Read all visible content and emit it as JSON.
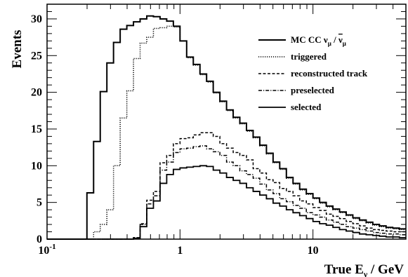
{
  "chart_data": {
    "type": "line",
    "step": true,
    "xscale": "log",
    "xlim": [
      0.1,
      50
    ],
    "ylim": [
      0,
      32
    ],
    "xlabel_main": "True E",
    "xlabel_sub": "ν",
    "xlabel_unit": " / GeV",
    "ylabel": "Events",
    "legend_position": "upper-right",
    "x_tick_labels": [
      {
        "v": 0.1,
        "main": "10",
        "sup": "-1"
      },
      {
        "v": 1,
        "main": "1",
        "sup": ""
      },
      {
        "v": 10,
        "main": "10",
        "sup": ""
      }
    ],
    "y_ticks": [
      0,
      5,
      10,
      15,
      20,
      25,
      30
    ],
    "legend": [
      {
        "series": "mc",
        "text": "MC CC ν",
        "sub": "μ",
        "mid": " / ",
        "bar": "ν",
        "sub2": "μ"
      },
      {
        "series": "triggered",
        "text": "triggered"
      },
      {
        "series": "reco",
        "text": "reconstructed track"
      },
      {
        "series": "presel",
        "text": "preselected"
      },
      {
        "series": "selected",
        "text": "selected"
      }
    ],
    "bin_edges": [
      0.1,
      0.1122,
      0.1259,
      0.1413,
      0.1585,
      0.1778,
      0.1995,
      0.2239,
      0.2512,
      0.2818,
      0.3162,
      0.3548,
      0.3981,
      0.4467,
      0.5012,
      0.5623,
      0.631,
      0.7079,
      0.7943,
      0.8913,
      1.0,
      1.122,
      1.259,
      1.413,
      1.585,
      1.778,
      1.995,
      2.239,
      2.512,
      2.818,
      3.162,
      3.548,
      3.981,
      4.467,
      5.012,
      5.623,
      6.31,
      7.079,
      7.943,
      8.913,
      10.0,
      11.22,
      12.59,
      14.13,
      15.85,
      17.78,
      19.95,
      22.39,
      25.12,
      28.18,
      31.62,
      35.48,
      39.81,
      44.67,
      50.0
    ],
    "series": [
      {
        "id": "mc",
        "style": "solid",
        "width": 2,
        "values": [
          0,
          0,
          0,
          0,
          0,
          0,
          6.3,
          13.3,
          20.1,
          24.0,
          26.8,
          28.6,
          29.1,
          29.6,
          30.0,
          30.4,
          30.3,
          30.0,
          29.7,
          29.0,
          27.0,
          24.8,
          23.8,
          22.5,
          21.5,
          20.0,
          18.8,
          17.6,
          16.6,
          15.8,
          14.8,
          13.9,
          12.8,
          11.7,
          10.5,
          9.6,
          8.4,
          7.6,
          6.8,
          6.2,
          5.6,
          5.0,
          4.5,
          4.1,
          3.7,
          3.3,
          2.9,
          2.6,
          2.3,
          2.0,
          1.8,
          1.6,
          1.5,
          1.4
        ]
      },
      {
        "id": "triggered",
        "style": "dotted",
        "width": 1.5,
        "values": [
          0,
          0,
          0,
          0,
          0,
          0,
          0,
          1.0,
          2.0,
          4.0,
          10.0,
          16.5,
          20.2,
          24.6,
          26.7,
          27.5,
          28.7,
          28.8,
          29.0,
          28.9,
          27.0,
          24.7,
          23.7,
          22.4,
          21.4,
          19.9,
          18.7,
          17.5,
          16.5,
          15.7,
          14.7,
          13.8,
          12.7,
          11.6,
          10.4,
          9.5,
          8.3,
          7.5,
          6.7,
          6.1,
          5.5,
          4.9,
          4.4,
          4.0,
          3.6,
          3.2,
          2.8,
          2.5,
          2.2,
          1.9,
          1.7,
          1.5,
          1.4,
          1.3
        ]
      },
      {
        "id": "reco",
        "style": "dashed",
        "width": 1.5,
        "values": [
          0,
          0,
          0,
          0,
          0,
          0,
          0,
          0,
          0,
          0,
          0,
          0,
          0,
          0.2,
          2.1,
          5.3,
          6.5,
          10.4,
          11.4,
          13.0,
          13.7,
          13.8,
          14.2,
          14.5,
          14.5,
          14.0,
          13.0,
          12.4,
          11.8,
          11.4,
          10.8,
          9.6,
          9.0,
          8.1,
          7.7,
          6.9,
          6.5,
          5.9,
          5.2,
          4.8,
          4.3,
          3.9,
          3.4,
          3.1,
          2.8,
          2.4,
          2.1,
          1.8,
          1.5,
          1.3,
          1.2,
          1.1,
          1.0,
          1.0
        ]
      },
      {
        "id": "presel",
        "style": "dashdot",
        "width": 1.5,
        "values": [
          0,
          0,
          0,
          0,
          0,
          0,
          0,
          0,
          0,
          0,
          0,
          0,
          0,
          0.2,
          2.0,
          4.8,
          5.9,
          9.4,
          10.5,
          11.8,
          12.3,
          12.4,
          12.6,
          12.7,
          12.3,
          11.9,
          11.4,
          10.5,
          10.0,
          9.3,
          8.8,
          8.3,
          7.5,
          6.7,
          6.2,
          5.5,
          5.1,
          4.6,
          4.2,
          3.6,
          3.3,
          3.0,
          2.6,
          2.3,
          2.0,
          1.7,
          1.5,
          1.3,
          1.1,
          0.9,
          0.8,
          0.7,
          0.7,
          0.6
        ]
      },
      {
        "id": "selected",
        "style": "solid",
        "width": 1.8,
        "values": [
          0,
          0,
          0,
          0,
          0,
          0,
          0,
          0,
          0,
          0,
          0,
          0,
          0,
          0.1,
          1.7,
          4.2,
          5.2,
          7.6,
          8.8,
          9.5,
          9.7,
          9.8,
          9.9,
          10.0,
          9.9,
          9.4,
          9.0,
          8.4,
          8.0,
          7.6,
          7.0,
          6.5,
          6.0,
          5.5,
          4.9,
          4.5,
          4.0,
          3.6,
          3.2,
          2.8,
          2.4,
          2.1,
          1.9,
          1.6,
          1.3,
          1.1,
          0.9,
          0.7,
          0.6,
          0.5,
          0.4,
          0.3,
          0.3,
          0.2
        ]
      }
    ]
  }
}
